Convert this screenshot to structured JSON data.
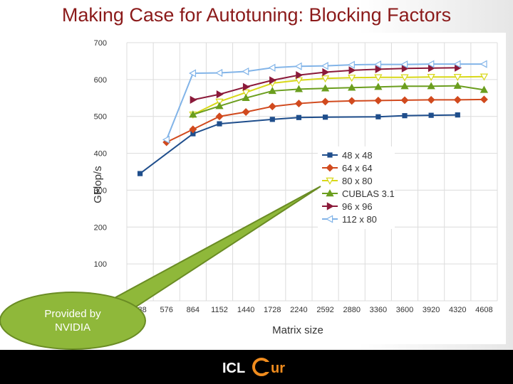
{
  "slide": {
    "title": "Making Case for Autotuning: Blocking Factors",
    "callout_text": "Provided by NVIDIA",
    "logo": {
      "text_a": "ICL",
      "text_b": "ur",
      "accent": "#f08c1e"
    }
  },
  "chart_data": {
    "type": "line",
    "title": "",
    "xlabel": "Matrix size",
    "ylabel": "GFlop/s",
    "categories": [
      "288",
      "576",
      "864",
      "1152",
      "1440",
      "1728",
      "2240",
      "2592",
      "2880",
      "3360",
      "3600",
      "3920",
      "4320",
      "4608"
    ],
    "ylim": [
      0,
      700
    ],
    "yticks": [
      0,
      100,
      200,
      300,
      400,
      500,
      600,
      700
    ],
    "grid": true,
    "legend_position": "center-right",
    "series": [
      {
        "name": "48 x  48",
        "color": "#1f4e8c",
        "marker": "square",
        "values": [
          345,
          null,
          453,
          480,
          null,
          492,
          497,
          498,
          null,
          499,
          502,
          503,
          504,
          null
        ]
      },
      {
        "name": "64 x  64",
        "color": "#d14a1e",
        "marker": "diamond",
        "values": [
          null,
          430,
          465,
          500,
          512,
          527,
          535,
          540,
          542,
          543,
          544,
          545,
          545,
          546
        ]
      },
      {
        "name": "80 x  80",
        "color": "#d8d818",
        "marker": "triangle-down",
        "values": [
          null,
          null,
          505,
          540,
          565,
          590,
          598,
          603,
          605,
          606,
          606,
          607,
          607,
          608
        ]
      },
      {
        "name": "CUBLAS 3.1",
        "color": "#6b9e1e",
        "marker": "triangle-up",
        "values": [
          null,
          null,
          505,
          528,
          550,
          569,
          574,
          576,
          578,
          580,
          582,
          582,
          583,
          572
        ]
      },
      {
        "name": "96 x  96",
        "color": "#8b1a3a",
        "marker": "triangle-right",
        "values": [
          null,
          null,
          545,
          560,
          580,
          598,
          612,
          620,
          625,
          628,
          630,
          631,
          632,
          null
        ]
      },
      {
        "name": "112 x  80",
        "color": "#82b4e8",
        "marker": "triangle-left",
        "values": [
          null,
          437,
          617,
          618,
          622,
          632,
          636,
          637,
          640,
          641,
          641,
          642,
          642,
          642
        ]
      }
    ]
  }
}
